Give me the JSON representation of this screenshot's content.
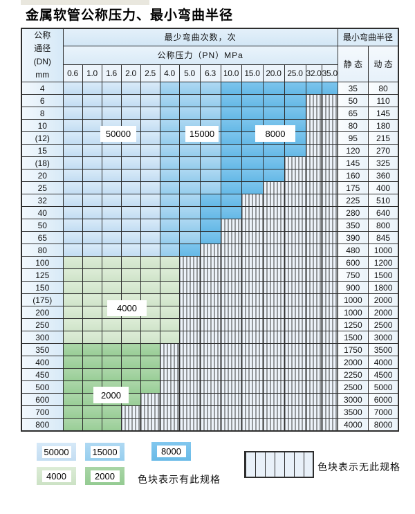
{
  "title": "金属软管公称压力、最小弯曲半径",
  "table": {
    "dn_header_lines": [
      "公称",
      "通径",
      "(DN)",
      "mm"
    ],
    "bend_times_header": "最少弯曲次数，次",
    "pressure_header": "公称压力（PN）MPa",
    "pressures": [
      "0.6",
      "1.0",
      "1.6",
      "2.0",
      "2.5",
      "4.0",
      "5.0",
      "6.3",
      "10.0",
      "15.0",
      "20.0",
      "25.0",
      "32.0",
      "35.0"
    ],
    "radius_header": "最小弯曲半径",
    "static_label": "静 态",
    "dynamic_label": "动 态",
    "cell_codes": {
      "L": "blue-light-50000-cycles",
      "M": "blue-mid-15000-cycles",
      "D": "blue-dark-8000-cycles",
      "G": "green-light-4000-cycles",
      "E": "green-dark-2000-cycles",
      "H": "hatched-no-spec"
    },
    "rows": [
      {
        "dn": "4",
        "cells": "LLLLLMMMDDDDDD",
        "static": "35",
        "dynamic": "80"
      },
      {
        "dn": "6",
        "cells": "LLLLLMMMDDDDHH",
        "static": "50",
        "dynamic": "110"
      },
      {
        "dn": "8",
        "cells": "LLLLLMMMDDDDHH",
        "static": "65",
        "dynamic": "145"
      },
      {
        "dn": "10",
        "cells": "LLLLLMMMDDDDHH",
        "static": "80",
        "dynamic": "180"
      },
      {
        "dn": "(12)",
        "cells": "LLLLLMMMDDDDHH",
        "static": "95",
        "dynamic": "215"
      },
      {
        "dn": "15",
        "cells": "LLLLLMMMDDDDHH",
        "static": "120",
        "dynamic": "270"
      },
      {
        "dn": "(18)",
        "cells": "LLLLLMMMDDDHHH",
        "static": "145",
        "dynamic": "325"
      },
      {
        "dn": "20",
        "cells": "LLLLLMMMDDDHHH",
        "static": "160",
        "dynamic": "360"
      },
      {
        "dn": "25",
        "cells": "LLLLLMMMDDHHHH",
        "static": "175",
        "dynamic": "400"
      },
      {
        "dn": "32",
        "cells": "LLLLLMMDDHHHHH",
        "static": "225",
        "dynamic": "510"
      },
      {
        "dn": "40",
        "cells": "LLLLLMMDDHHHHH",
        "static": "280",
        "dynamic": "640"
      },
      {
        "dn": "50",
        "cells": "LLLLLMMDHHHHHH",
        "static": "350",
        "dynamic": "800"
      },
      {
        "dn": "65",
        "cells": "LLLLLMMDHHHHHH",
        "static": "390",
        "dynamic": "845"
      },
      {
        "dn": "80",
        "cells": "LLLLLMDHHHHHHH",
        "static": "480",
        "dynamic": "1000"
      },
      {
        "dn": "100",
        "cells": "GGGGGGHHHHHHHH",
        "static": "600",
        "dynamic": "1200"
      },
      {
        "dn": "125",
        "cells": "GGGGGGHHHHHHHH",
        "static": "750",
        "dynamic": "1500"
      },
      {
        "dn": "150",
        "cells": "GGGGGGHHHHHHHH",
        "static": "900",
        "dynamic": "1800"
      },
      {
        "dn": "(175)",
        "cells": "GGGGGGHHHHHHHH",
        "static": "1000",
        "dynamic": "2000"
      },
      {
        "dn": "200",
        "cells": "GGGGGGHHHHHHHH",
        "static": "1000",
        "dynamic": "2000"
      },
      {
        "dn": "250",
        "cells": "GGGGGGHHHHHHHH",
        "static": "1250",
        "dynamic": "2500"
      },
      {
        "dn": "300",
        "cells": "GGGGGGHHHHHHHH",
        "static": "1500",
        "dynamic": "3000"
      },
      {
        "dn": "350",
        "cells": "EEEEEHHHHHHHHH",
        "static": "1750",
        "dynamic": "3500"
      },
      {
        "dn": "400",
        "cells": "EEEEEHHHHHHHHH",
        "static": "2000",
        "dynamic": "4000"
      },
      {
        "dn": "450",
        "cells": "EEEEEHHHHHHHHH",
        "static": "2250",
        "dynamic": "4500"
      },
      {
        "dn": "500",
        "cells": "EEEEEHHHHHHHHH",
        "static": "2500",
        "dynamic": "5000"
      },
      {
        "dn": "600",
        "cells": "EEEEHHHHHHHHHH",
        "static": "3000",
        "dynamic": "6000"
      },
      {
        "dn": "700",
        "cells": "EEEHHHHHHHHHHH",
        "static": "3500",
        "dynamic": "7000"
      },
      {
        "dn": "800",
        "cells": "EEEHHHHHHHHHHH",
        "static": "4000",
        "dynamic": "8000"
      }
    ]
  },
  "region_labels": {
    "blue_50000": "50000",
    "blue_15000": "15000",
    "blue_8000": "8000",
    "green_4000": "4000",
    "green_2000": "2000"
  },
  "legend": {
    "items": [
      {
        "label": "50000",
        "style": "blue-light"
      },
      {
        "label": "15000",
        "style": "blue-mid"
      },
      {
        "label": "8000",
        "style": "blue-dark"
      },
      {
        "label": "4000",
        "style": "green-light"
      },
      {
        "label": "2000",
        "style": "green-dark"
      }
    ],
    "has_spec_text": "色块表示有此规格",
    "no_spec_text": "色块表示无此规格"
  },
  "colors": {
    "blue_light": "#cde3f5",
    "blue_mid": "#a0d1ee",
    "blue_dark": "#70bce8",
    "green_light": "#d6e8d0",
    "green_dark": "#a1d19e",
    "hatch_bg": "#edf3fa",
    "grid": "#2d2d2d"
  }
}
